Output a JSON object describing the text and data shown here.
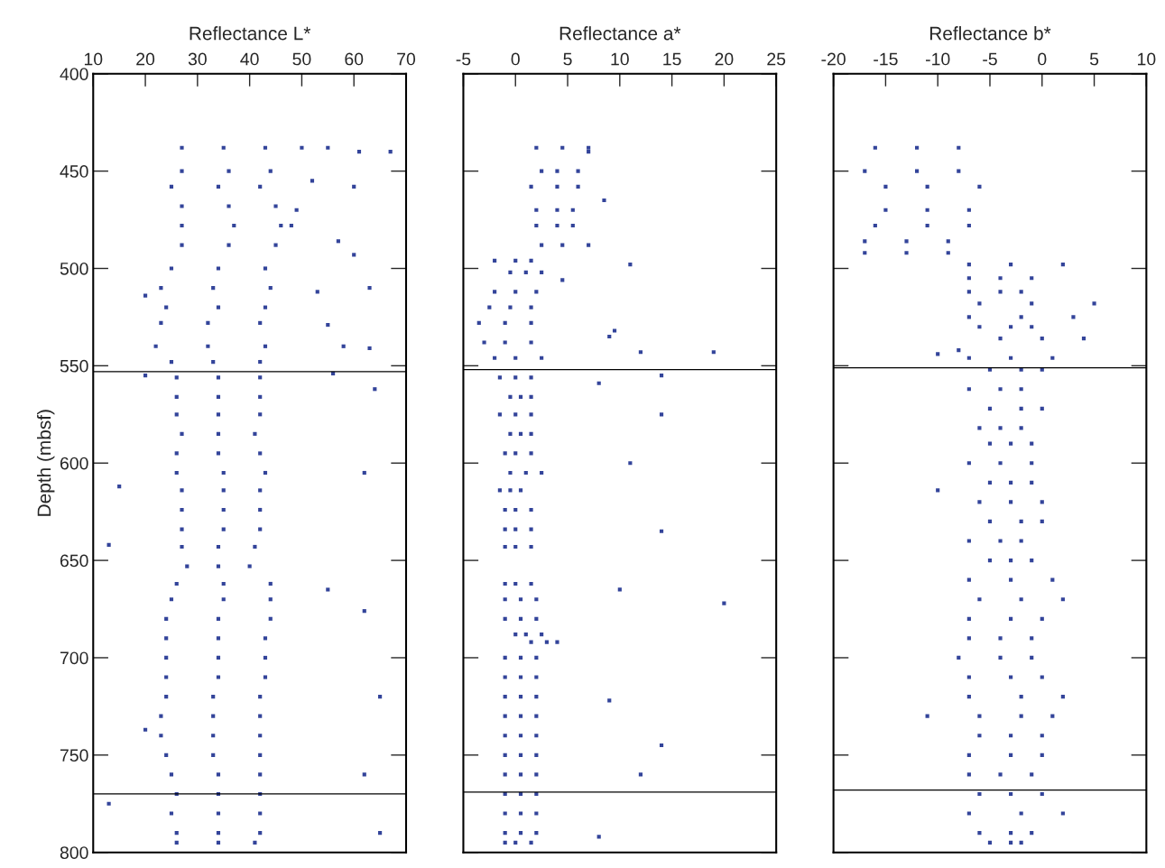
{
  "chart_data": [
    {
      "type": "scatter",
      "xlabel": "Reflectance L*",
      "ylabel": "Depth (mbsf)",
      "marker": "square",
      "grid": false,
      "xlim": [
        10,
        70
      ],
      "xticks": [
        10,
        20,
        30,
        40,
        50,
        60,
        70
      ],
      "ylim": [
        800,
        400
      ],
      "yticks": [
        400,
        450,
        500,
        550,
        600,
        650,
        700,
        750,
        800
      ],
      "ref_lines": [
        {
          "axis": "y",
          "value": 553,
          "color": "#000000"
        },
        {
          "axis": "y",
          "value": 770,
          "color": "#000000"
        }
      ],
      "series": [
        {
          "color": "#33449a",
          "x": [
            27,
            35,
            43,
            27,
            36,
            44,
            25,
            34,
            42,
            27,
            36,
            45,
            27,
            37,
            46,
            27,
            36,
            45,
            25,
            34,
            43,
            23,
            33,
            44,
            24,
            34,
            43,
            23,
            32,
            42,
            22,
            32,
            43,
            25,
            33,
            42,
            26,
            34,
            42,
            26,
            34,
            42,
            26,
            34,
            42,
            27,
            34,
            41,
            26,
            34,
            42,
            26,
            35,
            43,
            27,
            35,
            42,
            27,
            35,
            42,
            27,
            35,
            42,
            27,
            34,
            41,
            28,
            34,
            40,
            26,
            35,
            44,
            25,
            35,
            44,
            24,
            34,
            44,
            24,
            34,
            43,
            24,
            34,
            43,
            24,
            34,
            43,
            24,
            33,
            42,
            23,
            33,
            42,
            23,
            33,
            42,
            24,
            33,
            42,
            25,
            34,
            42,
            26,
            34,
            42,
            25,
            34,
            42,
            26,
            34,
            42,
            26,
            34,
            41,
            50,
            55,
            61,
            67,
            52,
            60,
            49,
            48,
            57,
            60,
            63,
            53,
            55,
            58,
            63,
            20,
            20,
            56,
            64,
            62,
            15,
            13,
            62,
            65,
            20,
            62,
            65,
            13,
            55
          ],
          "values": [
            438,
            438,
            438,
            450,
            450,
            450,
            458,
            458,
            458,
            468,
            468,
            468,
            478,
            478,
            478,
            488,
            488,
            488,
            500,
            500,
            500,
            510,
            510,
            510,
            520,
            520,
            520,
            528,
            528,
            528,
            540,
            540,
            540,
            548,
            548,
            548,
            556,
            556,
            556,
            566,
            566,
            566,
            575,
            575,
            575,
            585,
            585,
            585,
            595,
            595,
            595,
            605,
            605,
            605,
            614,
            614,
            614,
            624,
            624,
            624,
            634,
            634,
            634,
            643,
            643,
            643,
            653,
            653,
            653,
            662,
            662,
            662,
            670,
            670,
            670,
            680,
            680,
            680,
            690,
            690,
            690,
            700,
            700,
            700,
            710,
            710,
            710,
            720,
            720,
            720,
            730,
            730,
            730,
            740,
            740,
            740,
            750,
            750,
            750,
            760,
            760,
            760,
            770,
            770,
            770,
            780,
            780,
            780,
            790,
            790,
            790,
            795,
            795,
            795,
            438,
            438,
            440,
            440,
            455,
            458,
            470,
            478,
            486,
            493,
            510,
            512,
            529,
            540,
            541,
            514,
            555,
            554,
            562,
            605,
            612,
            642,
            676,
            720,
            737,
            760,
            790,
            775,
            665
          ]
        }
      ]
    },
    {
      "type": "scatter",
      "xlabel": "Reflectance a*",
      "marker": "square",
      "grid": false,
      "tick_labels": "x",
      "xlim": [
        -5,
        25
      ],
      "xticks": [
        -5,
        0,
        5,
        10,
        15,
        20,
        25
      ],
      "ylim": [
        800,
        400
      ],
      "yticks": [
        400,
        450,
        500,
        550,
        600,
        650,
        700,
        750,
        800
      ],
      "ref_lines": [
        {
          "axis": "y",
          "value": 552,
          "color": "#000000"
        },
        {
          "axis": "y",
          "value": 769,
          "color": "#000000"
        }
      ],
      "series": [
        {
          "color": "#33449a",
          "x": [
            2,
            4.5,
            7,
            2.5,
            4,
            6,
            1.5,
            4,
            6,
            2,
            4,
            5.5,
            2,
            4,
            5.5,
            2.5,
            4.5,
            7,
            -2,
            0,
            1.5,
            -0.5,
            1,
            2.5,
            -2,
            0,
            2,
            -2.5,
            -0.5,
            1.5,
            -3.5,
            -1,
            1.5,
            -3,
            -1,
            1.5,
            -2,
            0,
            2.5,
            -1.5,
            0,
            1.5,
            -0.5,
            0.5,
            1.5,
            -1.5,
            0,
            1.5,
            -0.5,
            0.5,
            1.5,
            -1,
            0,
            1.5,
            -0.5,
            1,
            2.5,
            -1.5,
            -0.5,
            0.5,
            -1,
            0,
            1.5,
            -1,
            0,
            1.5,
            -1,
            0,
            1.5,
            -1,
            0,
            1.5,
            -1,
            0.5,
            2,
            -1,
            0.5,
            2,
            0,
            1,
            2.5,
            1.5,
            3,
            4,
            -1,
            0.5,
            2,
            -1,
            0.5,
            2,
            -1,
            0.5,
            2,
            -1,
            0.5,
            2,
            -1,
            0.5,
            2,
            -1,
            0.5,
            2,
            -1,
            0.5,
            2,
            -1,
            0.5,
            2,
            -1,
            0.5,
            2,
            -1,
            0.5,
            2,
            -1,
            0,
            1.5,
            11,
            9.5,
            9,
            4.5,
            14,
            19,
            12,
            8,
            14,
            11,
            14,
            10,
            20,
            9,
            14,
            12,
            8,
            7,
            8.5
          ],
          "values": [
            438,
            438,
            438,
            450,
            450,
            450,
            458,
            458,
            458,
            470,
            470,
            470,
            478,
            478,
            478,
            488,
            488,
            488,
            496,
            496,
            496,
            502,
            502,
            502,
            512,
            512,
            512,
            520,
            520,
            520,
            528,
            528,
            528,
            538,
            538,
            538,
            546,
            546,
            546,
            556,
            556,
            556,
            566,
            566,
            566,
            575,
            575,
            575,
            585,
            585,
            585,
            595,
            595,
            595,
            605,
            605,
            605,
            614,
            614,
            614,
            624,
            624,
            624,
            634,
            634,
            634,
            643,
            643,
            643,
            662,
            662,
            662,
            670,
            670,
            670,
            680,
            680,
            680,
            688,
            688,
            688,
            692,
            692,
            692,
            700,
            700,
            700,
            710,
            710,
            710,
            720,
            720,
            720,
            730,
            730,
            730,
            740,
            740,
            740,
            750,
            750,
            750,
            760,
            760,
            760,
            770,
            770,
            770,
            780,
            780,
            780,
            790,
            790,
            790,
            795,
            795,
            795,
            498,
            532,
            535,
            506,
            555,
            543,
            543,
            559,
            575,
            600,
            635,
            665,
            672,
            722,
            745,
            760,
            792,
            440,
            465
          ]
        }
      ]
    },
    {
      "type": "scatter",
      "xlabel": "Reflectance b*",
      "marker": "square",
      "grid": false,
      "tick_labels": "x",
      "xlim": [
        -20,
        10
      ],
      "xticks": [
        -20,
        -15,
        -10,
        -5,
        0,
        5,
        10
      ],
      "ylim": [
        800,
        400
      ],
      "yticks": [
        400,
        450,
        500,
        550,
        600,
        650,
        700,
        750,
        800
      ],
      "ref_lines": [
        {
          "axis": "y",
          "value": 551,
          "color": "#000000"
        },
        {
          "axis": "y",
          "value": 768,
          "color": "#000000"
        }
      ],
      "series": [
        {
          "color": "#33449a",
          "x": [
            -16,
            -12,
            -8,
            -17,
            -12,
            -8,
            -15,
            -11,
            -6,
            -15,
            -11,
            -7,
            -16,
            -11,
            -7,
            -17,
            -13,
            -9,
            -17,
            -13,
            -9,
            -7,
            -3,
            2,
            -7,
            -4,
            -1,
            -7,
            -4,
            -2,
            -6,
            -1,
            5,
            -7,
            -2,
            3,
            -6,
            -3,
            -1,
            -4,
            0,
            4,
            -7,
            -3,
            1,
            -5,
            -2,
            0,
            -7,
            -4,
            -2,
            -5,
            -2,
            0,
            -6,
            -4,
            -2,
            -5,
            -3,
            -1,
            -7,
            -4,
            -1,
            -5,
            -3,
            -1,
            -6,
            -3,
            0,
            -5,
            -2,
            0,
            -7,
            -4,
            -2,
            -5,
            -3,
            -1,
            -7,
            -3,
            1,
            -6,
            -2,
            2,
            -7,
            -3,
            0,
            -7,
            -4,
            -1,
            -8,
            -4,
            -1,
            -7,
            -3,
            0,
            -7,
            -2,
            2,
            -6,
            -2,
            1,
            -6,
            -3,
            0,
            -7,
            -3,
            0,
            -7,
            -4,
            -1,
            -6,
            -3,
            0,
            -7,
            -2,
            2,
            -6,
            -3,
            -1,
            -5,
            -3,
            -2,
            -10,
            -8,
            -10,
            -11
          ],
          "values": [
            438,
            438,
            438,
            450,
            450,
            450,
            458,
            458,
            458,
            470,
            470,
            470,
            478,
            478,
            478,
            486,
            486,
            486,
            492,
            492,
            492,
            498,
            498,
            498,
            505,
            505,
            505,
            512,
            512,
            512,
            518,
            518,
            518,
            525,
            525,
            525,
            530,
            530,
            530,
            536,
            536,
            536,
            546,
            546,
            546,
            552,
            552,
            552,
            562,
            562,
            562,
            572,
            572,
            572,
            582,
            582,
            582,
            590,
            590,
            590,
            600,
            600,
            600,
            610,
            610,
            610,
            620,
            620,
            620,
            630,
            630,
            630,
            640,
            640,
            640,
            650,
            650,
            650,
            660,
            660,
            660,
            670,
            670,
            670,
            680,
            680,
            680,
            690,
            690,
            690,
            700,
            700,
            700,
            710,
            710,
            710,
            720,
            720,
            720,
            730,
            730,
            730,
            740,
            740,
            740,
            750,
            750,
            750,
            760,
            760,
            760,
            770,
            770,
            770,
            780,
            780,
            780,
            790,
            790,
            790,
            795,
            795,
            795,
            544,
            542,
            614,
            730
          ]
        }
      ]
    }
  ]
}
